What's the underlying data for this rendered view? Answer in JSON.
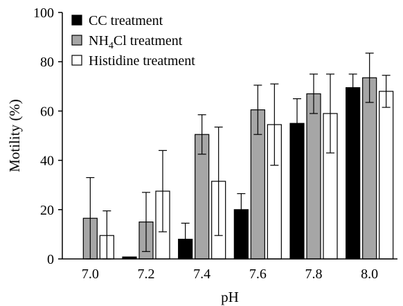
{
  "chart_data": {
    "type": "bar",
    "title": "",
    "xlabel": "pH",
    "ylabel": "Motility (%)",
    "ylim": [
      0,
      100
    ],
    "yticks": [
      "0",
      "20",
      "40",
      "60",
      "80",
      "100"
    ],
    "categories": [
      "7.0",
      "7.2",
      "7.4",
      "7.6",
      "7.8",
      "8.0"
    ],
    "legend_position": "top-left",
    "grid": false,
    "series": [
      {
        "name": "CC treatment",
        "name_main": "CC treatment",
        "name_sub": "",
        "name_tail": "",
        "color": "#000000",
        "values": [
          0,
          0.8,
          8,
          20,
          55,
          69.5
        ],
        "errors": [
          0,
          0,
          6.5,
          6.5,
          10,
          5.5
        ]
      },
      {
        "name": "NH4Cl treatment",
        "name_main": "NH",
        "name_sub": "4",
        "name_tail": "Cl treatment",
        "color": "#a6a6a6",
        "values": [
          16.5,
          15,
          50.5,
          60.5,
          67,
          73.5
        ],
        "errors": [
          16.5,
          12,
          8,
          10,
          8,
          10
        ]
      },
      {
        "name": "Histidine treatment",
        "name_main": "Histidine treatment",
        "name_sub": "",
        "name_tail": "",
        "color": "#ffffff",
        "values": [
          9.5,
          27.5,
          31.5,
          54.5,
          59,
          68
        ],
        "errors": [
          10,
          16.5,
          22,
          16.5,
          16,
          6.5
        ]
      }
    ]
  }
}
